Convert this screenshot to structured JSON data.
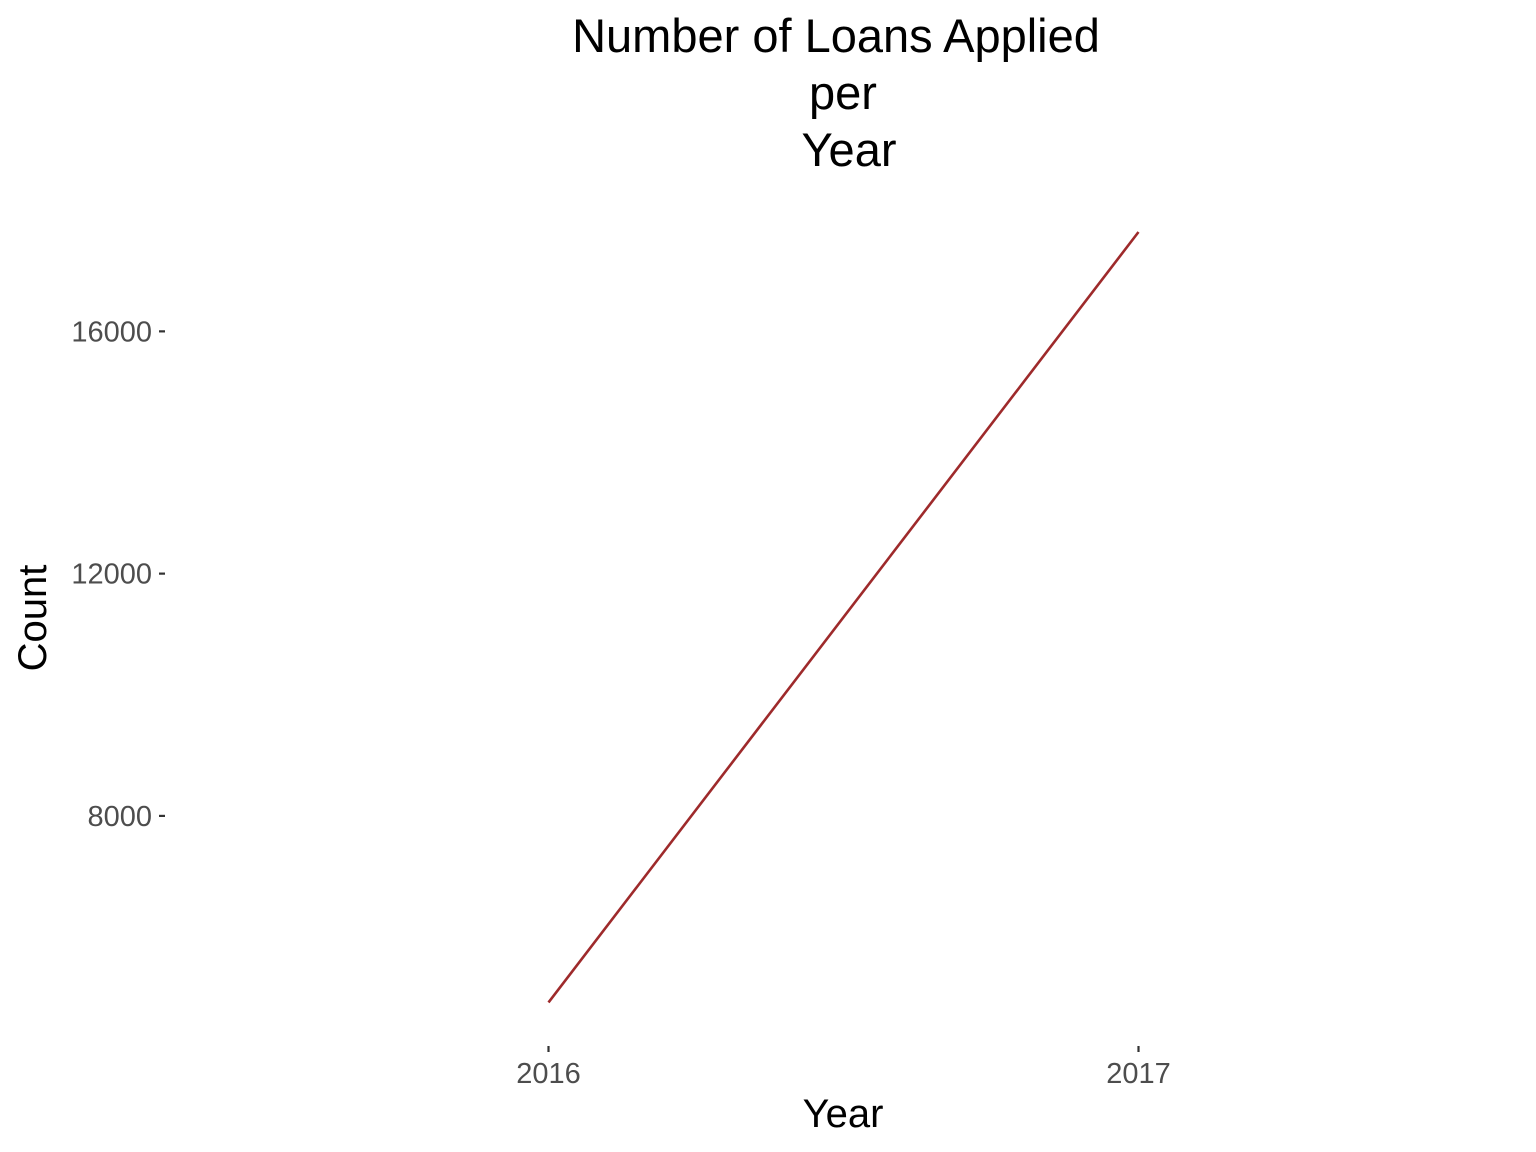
{
  "chart_data": {
    "type": "line",
    "title_lines": [
      "Number of Loans Applied",
      "per",
      "Year"
    ],
    "xlabel": "Year",
    "ylabel": "Count",
    "x": [
      2016,
      2017
    ],
    "x_tick_labels": [
      "2016",
      "2017"
    ],
    "y_ticks": [
      8000,
      12000,
      16000
    ],
    "y_tick_labels": [
      "8000",
      "12000",
      "16000"
    ],
    "xlim": [
      2015.35,
      2017.65
    ],
    "ylim": [
      4300,
      18400
    ],
    "grid": false,
    "legend": "none",
    "series": [
      {
        "values": [
          4920,
          17640
        ],
        "color": "#9e2a2b"
      }
    ]
  }
}
